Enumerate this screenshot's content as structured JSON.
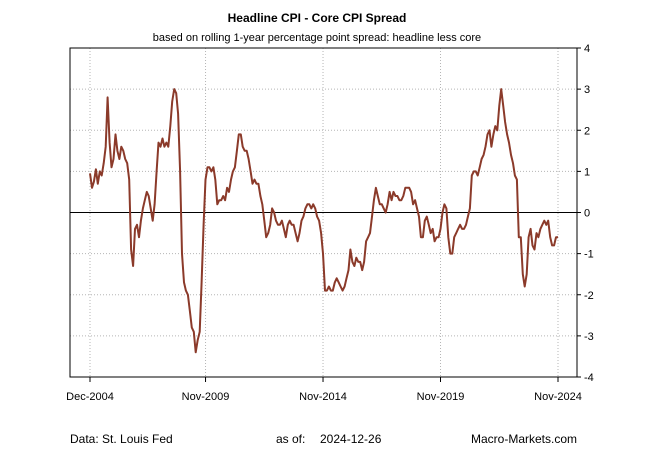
{
  "chart_data": {
    "type": "line",
    "title": "Headline CPI - Core CPI Spread",
    "subtitle": "based on rolling 1-year percentage point spread: headline less core",
    "xlabel": "",
    "ylabel": "",
    "ylim": [
      -4,
      4
    ],
    "y_ticks": [
      4,
      3,
      2,
      1,
      0,
      -1,
      -2,
      -3,
      -4
    ],
    "x_range": [
      "2004-12",
      "2024-11"
    ],
    "x_ticks": [
      {
        "date": "2004-12",
        "label": "Dec-2004"
      },
      {
        "date": "2009-11",
        "label": "Nov-2009"
      },
      {
        "date": "2014-11",
        "label": "Nov-2014"
      },
      {
        "date": "2019-11",
        "label": "Nov-2019"
      },
      {
        "date": "2024-11",
        "label": "Nov-2024"
      }
    ],
    "grid": true,
    "zero_line": true,
    "series": [
      {
        "color": "#8b3a2a",
        "points": [
          [
            "2004-12",
            0.95
          ],
          [
            "2005-01",
            0.6
          ],
          [
            "2005-02",
            0.75
          ],
          [
            "2005-03",
            1.05
          ],
          [
            "2005-04",
            0.7
          ],
          [
            "2005-05",
            1.0
          ],
          [
            "2005-06",
            0.9
          ],
          [
            "2005-07",
            1.2
          ],
          [
            "2005-08",
            1.6
          ],
          [
            "2005-09",
            2.8
          ],
          [
            "2005-10",
            1.7
          ],
          [
            "2005-11",
            1.1
          ],
          [
            "2005-12",
            1.3
          ],
          [
            "2006-01",
            1.9
          ],
          [
            "2006-02",
            1.5
          ],
          [
            "2006-03",
            1.3
          ],
          [
            "2006-04",
            1.6
          ],
          [
            "2006-05",
            1.5
          ],
          [
            "2006-06",
            1.3
          ],
          [
            "2006-07",
            1.2
          ],
          [
            "2006-08",
            0.8
          ],
          [
            "2006-09",
            -0.9
          ],
          [
            "2006-10",
            -1.3
          ],
          [
            "2006-11",
            -0.4
          ],
          [
            "2006-12",
            -0.3
          ],
          [
            "2007-01",
            -0.6
          ],
          [
            "2007-02",
            -0.2
          ],
          [
            "2007-03",
            0.1
          ],
          [
            "2007-04",
            0.3
          ],
          [
            "2007-05",
            0.5
          ],
          [
            "2007-06",
            0.4
          ],
          [
            "2007-07",
            0.1
          ],
          [
            "2007-08",
            -0.2
          ],
          [
            "2007-09",
            0.2
          ],
          [
            "2007-10",
            1.0
          ],
          [
            "2007-11",
            1.7
          ],
          [
            "2007-12",
            1.6
          ],
          [
            "2008-01",
            1.8
          ],
          [
            "2008-02",
            1.6
          ],
          [
            "2008-03",
            1.7
          ],
          [
            "2008-04",
            1.6
          ],
          [
            "2008-05",
            2.1
          ],
          [
            "2008-06",
            2.7
          ],
          [
            "2008-07",
            3.0
          ],
          [
            "2008-08",
            2.9
          ],
          [
            "2008-09",
            2.4
          ],
          [
            "2008-10",
            1.0
          ],
          [
            "2008-11",
            -1.0
          ],
          [
            "2008-12",
            -1.7
          ],
          [
            "2009-01",
            -1.9
          ],
          [
            "2009-02",
            -2.0
          ],
          [
            "2009-03",
            -2.4
          ],
          [
            "2009-04",
            -2.8
          ],
          [
            "2009-05",
            -2.9
          ],
          [
            "2009-06",
            -3.4
          ],
          [
            "2009-07",
            -3.1
          ],
          [
            "2009-08",
            -2.9
          ],
          [
            "2009-09",
            -1.7
          ],
          [
            "2009-10",
            -0.3
          ],
          [
            "2009-11",
            0.8
          ],
          [
            "2009-12",
            1.1
          ],
          [
            "2010-01",
            1.1
          ],
          [
            "2010-02",
            1.0
          ],
          [
            "2010-03",
            1.1
          ],
          [
            "2010-04",
            0.8
          ],
          [
            "2010-05",
            0.2
          ],
          [
            "2010-06",
            0.3
          ],
          [
            "2010-07",
            0.3
          ],
          [
            "2010-08",
            0.4
          ],
          [
            "2010-09",
            0.3
          ],
          [
            "2010-10",
            0.6
          ],
          [
            "2010-11",
            0.5
          ],
          [
            "2010-12",
            0.8
          ],
          [
            "2011-01",
            1.0
          ],
          [
            "2011-02",
            1.1
          ],
          [
            "2011-03",
            1.5
          ],
          [
            "2011-04",
            1.9
          ],
          [
            "2011-05",
            1.9
          ],
          [
            "2011-06",
            1.6
          ],
          [
            "2011-07",
            1.5
          ],
          [
            "2011-08",
            1.5
          ],
          [
            "2011-09",
            1.3
          ],
          [
            "2011-10",
            1.0
          ],
          [
            "2011-11",
            0.7
          ],
          [
            "2011-12",
            0.8
          ],
          [
            "2012-01",
            0.7
          ],
          [
            "2012-02",
            0.7
          ],
          [
            "2012-03",
            0.4
          ],
          [
            "2012-04",
            0.2
          ],
          [
            "2012-05",
            -0.2
          ],
          [
            "2012-06",
            -0.6
          ],
          [
            "2012-07",
            -0.5
          ],
          [
            "2012-08",
            -0.3
          ],
          [
            "2012-09",
            0.1
          ],
          [
            "2012-10",
            0.0
          ],
          [
            "2012-11",
            -0.2
          ],
          [
            "2012-12",
            -0.3
          ],
          [
            "2013-01",
            -0.3
          ],
          [
            "2013-02",
            -0.2
          ],
          [
            "2013-03",
            -0.4
          ],
          [
            "2013-04",
            -0.6
          ],
          [
            "2013-05",
            -0.3
          ],
          [
            "2013-06",
            -0.2
          ],
          [
            "2013-07",
            -0.3
          ],
          [
            "2013-08",
            -0.3
          ],
          [
            "2013-09",
            -0.5
          ],
          [
            "2013-10",
            -0.7
          ],
          [
            "2013-11",
            -0.5
          ],
          [
            "2013-12",
            -0.2
          ],
          [
            "2014-01",
            -0.1
          ],
          [
            "2014-02",
            0.1
          ],
          [
            "2014-03",
            0.2
          ],
          [
            "2014-04",
            0.2
          ],
          [
            "2014-05",
            0.1
          ],
          [
            "2014-06",
            0.2
          ],
          [
            "2014-07",
            0.1
          ],
          [
            "2014-08",
            -0.1
          ],
          [
            "2014-09",
            -0.2
          ],
          [
            "2014-10",
            -0.5
          ],
          [
            "2014-11",
            -1.0
          ],
          [
            "2014-12",
            -1.9
          ],
          [
            "2015-01",
            -1.9
          ],
          [
            "2015-02",
            -1.8
          ],
          [
            "2015-03",
            -1.9
          ],
          [
            "2015-04",
            -1.9
          ],
          [
            "2015-05",
            -1.7
          ],
          [
            "2015-06",
            -1.6
          ],
          [
            "2015-07",
            -1.7
          ],
          [
            "2015-08",
            -1.8
          ],
          [
            "2015-09",
            -1.9
          ],
          [
            "2015-10",
            -1.8
          ],
          [
            "2015-11",
            -1.6
          ],
          [
            "2015-12",
            -1.4
          ],
          [
            "2016-01",
            -0.9
          ],
          [
            "2016-02",
            -1.2
          ],
          [
            "2016-03",
            -1.3
          ],
          [
            "2016-04",
            -1.1
          ],
          [
            "2016-05",
            -1.2
          ],
          [
            "2016-06",
            -1.2
          ],
          [
            "2016-07",
            -1.4
          ],
          [
            "2016-08",
            -1.2
          ],
          [
            "2016-09",
            -0.7
          ],
          [
            "2016-10",
            -0.6
          ],
          [
            "2016-11",
            -0.5
          ],
          [
            "2016-12",
            -0.1
          ],
          [
            "2017-01",
            0.3
          ],
          [
            "2017-02",
            0.6
          ],
          [
            "2017-03",
            0.4
          ],
          [
            "2017-04",
            0.2
          ],
          [
            "2017-05",
            0.2
          ],
          [
            "2017-06",
            0.1
          ],
          [
            "2017-07",
            0.0
          ],
          [
            "2017-08",
            0.2
          ],
          [
            "2017-09",
            0.5
          ],
          [
            "2017-10",
            0.3
          ],
          [
            "2017-11",
            0.5
          ],
          [
            "2017-12",
            0.4
          ],
          [
            "2018-01",
            0.4
          ],
          [
            "2018-02",
            0.3
          ],
          [
            "2018-03",
            0.3
          ],
          [
            "2018-04",
            0.4
          ],
          [
            "2018-05",
            0.6
          ],
          [
            "2018-06",
            0.6
          ],
          [
            "2018-07",
            0.6
          ],
          [
            "2018-08",
            0.5
          ],
          [
            "2018-09",
            0.2
          ],
          [
            "2018-10",
            0.3
          ],
          [
            "2018-11",
            0.1
          ],
          [
            "2018-12",
            -0.1
          ],
          [
            "2019-01",
            -0.6
          ],
          [
            "2019-02",
            -0.6
          ],
          [
            "2019-03",
            -0.2
          ],
          [
            "2019-04",
            -0.1
          ],
          [
            "2019-05",
            -0.3
          ],
          [
            "2019-06",
            -0.5
          ],
          [
            "2019-07",
            -0.4
          ],
          [
            "2019-08",
            -0.7
          ],
          [
            "2019-09",
            -0.6
          ],
          [
            "2019-10",
            -0.6
          ],
          [
            "2019-11",
            -0.4
          ],
          [
            "2019-12",
            0.0
          ],
          [
            "2020-01",
            0.2
          ],
          [
            "2020-02",
            0.1
          ],
          [
            "2020-03",
            -0.6
          ],
          [
            "2020-04",
            -1.0
          ],
          [
            "2020-05",
            -1.0
          ],
          [
            "2020-06",
            -0.6
          ],
          [
            "2020-07",
            -0.5
          ],
          [
            "2020-08",
            -0.4
          ],
          [
            "2020-09",
            -0.3
          ],
          [
            "2020-10",
            -0.4
          ],
          [
            "2020-11",
            -0.4
          ],
          [
            "2020-12",
            -0.3
          ],
          [
            "2021-01",
            -0.1
          ],
          [
            "2021-02",
            0.1
          ],
          [
            "2021-03",
            0.9
          ],
          [
            "2021-04",
            1.0
          ],
          [
            "2021-05",
            1.0
          ],
          [
            "2021-06",
            0.9
          ],
          [
            "2021-07",
            1.1
          ],
          [
            "2021-08",
            1.3
          ],
          [
            "2021-09",
            1.4
          ],
          [
            "2021-10",
            1.6
          ],
          [
            "2021-11",
            1.9
          ],
          [
            "2021-12",
            2.0
          ],
          [
            "2022-01",
            1.6
          ],
          [
            "2022-02",
            1.9
          ],
          [
            "2022-03",
            2.1
          ],
          [
            "2022-04",
            2.0
          ],
          [
            "2022-05",
            2.6
          ],
          [
            "2022-06",
            3.0
          ],
          [
            "2022-07",
            2.6
          ],
          [
            "2022-08",
            2.2
          ],
          [
            "2022-09",
            1.9
          ],
          [
            "2022-10",
            1.7
          ],
          [
            "2022-11",
            1.4
          ],
          [
            "2022-12",
            1.2
          ],
          [
            "2023-01",
            0.9
          ],
          [
            "2023-02",
            0.8
          ],
          [
            "2023-03",
            -0.6
          ],
          [
            "2023-04",
            -0.6
          ],
          [
            "2023-05",
            -1.5
          ],
          [
            "2023-06",
            -1.8
          ],
          [
            "2023-07",
            -1.5
          ],
          [
            "2023-08",
            -0.6
          ],
          [
            "2023-09",
            -0.4
          ],
          [
            "2023-10",
            -0.8
          ],
          [
            "2023-11",
            -0.9
          ],
          [
            "2023-12",
            -0.5
          ],
          [
            "2024-01",
            -0.6
          ],
          [
            "2024-02",
            -0.4
          ],
          [
            "2024-03",
            -0.3
          ],
          [
            "2024-04",
            -0.2
          ],
          [
            "2024-05",
            -0.3
          ],
          [
            "2024-06",
            -0.2
          ],
          [
            "2024-07",
            -0.6
          ],
          [
            "2024-08",
            -0.8
          ],
          [
            "2024-09",
            -0.8
          ],
          [
            "2024-10",
            -0.6
          ],
          [
            "2024-11",
            -0.6
          ]
        ]
      }
    ]
  },
  "footer": {
    "source": "Data: St. Louis Fed",
    "asof_label": "as of:",
    "asof_date": "2024-12-26",
    "brand": "Macro-Markets.com"
  }
}
